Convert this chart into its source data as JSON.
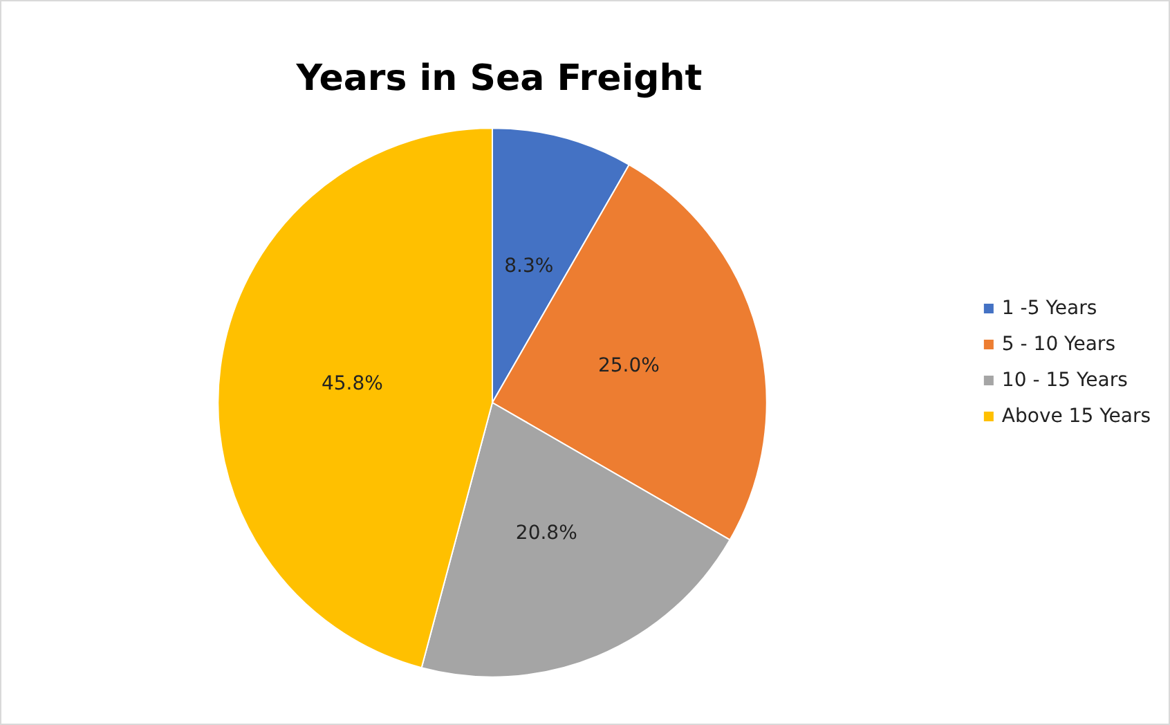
{
  "chart_data": {
    "type": "pie",
    "title": "Years in Sea Freight",
    "categories": [
      "1 -5 Years",
      "5 - 10 Years",
      "10 - 15 Years",
      "Above 15 Years"
    ],
    "values": [
      8.3,
      25.0,
      20.8,
      45.8
    ],
    "value_labels": [
      "8.3%",
      "25.0%",
      "20.8%",
      "45.8%"
    ],
    "colors": [
      "#4472c4",
      "#ed7d31",
      "#a5a5a5",
      "#ffc000"
    ],
    "legend": "right"
  }
}
